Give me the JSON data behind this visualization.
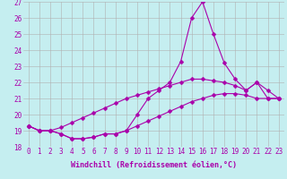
{
  "xlabel": "Windchill (Refroidissement éolien,°C)",
  "background_color": "#c5eef0",
  "grid_color": "#b0b0b0",
  "line_color": "#aa00aa",
  "xlim": [
    -0.5,
    23.5
  ],
  "ylim": [
    18,
    27
  ],
  "xticks": [
    0,
    1,
    2,
    3,
    4,
    5,
    6,
    7,
    8,
    9,
    10,
    11,
    12,
    13,
    14,
    15,
    16,
    17,
    18,
    19,
    20,
    21,
    22,
    23
  ],
  "yticks": [
    18,
    19,
    20,
    21,
    22,
    23,
    24,
    25,
    26,
    27
  ],
  "line1_x": [
    0,
    1,
    2,
    3,
    4,
    5,
    6,
    7,
    8,
    9,
    10,
    11,
    12,
    13,
    14,
    15,
    16,
    17,
    18,
    19,
    20,
    21,
    22,
    23
  ],
  "line1_y": [
    19.3,
    19.0,
    19.0,
    18.8,
    18.5,
    18.5,
    18.6,
    18.8,
    18.8,
    19.0,
    19.3,
    19.6,
    19.9,
    20.2,
    20.5,
    20.8,
    21.0,
    21.2,
    21.3,
    21.3,
    21.2,
    21.0,
    21.0,
    21.0
  ],
  "line2_x": [
    0,
    1,
    2,
    3,
    4,
    5,
    6,
    7,
    8,
    9,
    10,
    11,
    12,
    13,
    14,
    15,
    16,
    17,
    18,
    19,
    20,
    21,
    22,
    23
  ],
  "line2_y": [
    19.3,
    19.0,
    19.0,
    19.2,
    19.5,
    19.8,
    20.1,
    20.4,
    20.7,
    21.0,
    21.2,
    21.4,
    21.6,
    21.8,
    22.0,
    22.2,
    22.2,
    22.1,
    22.0,
    21.8,
    21.5,
    22.0,
    21.5,
    21.0
  ],
  "line3_x": [
    0,
    1,
    2,
    3,
    4,
    5,
    6,
    7,
    8,
    9,
    10,
    11,
    12,
    13,
    14,
    15,
    16,
    17,
    18,
    19,
    20,
    21,
    22,
    23
  ],
  "line3_y": [
    19.3,
    19.0,
    19.0,
    18.8,
    18.5,
    18.5,
    18.6,
    18.8,
    18.8,
    19.0,
    20.0,
    21.0,
    21.5,
    22.0,
    23.3,
    26.0,
    27.0,
    25.0,
    23.2,
    22.2,
    21.5,
    22.0,
    21.0,
    21.0
  ],
  "marker": "D",
  "marker_size": 2.5,
  "linewidth": 0.8,
  "tick_fontsize": 5.5,
  "xlabel_fontsize": 6.0
}
